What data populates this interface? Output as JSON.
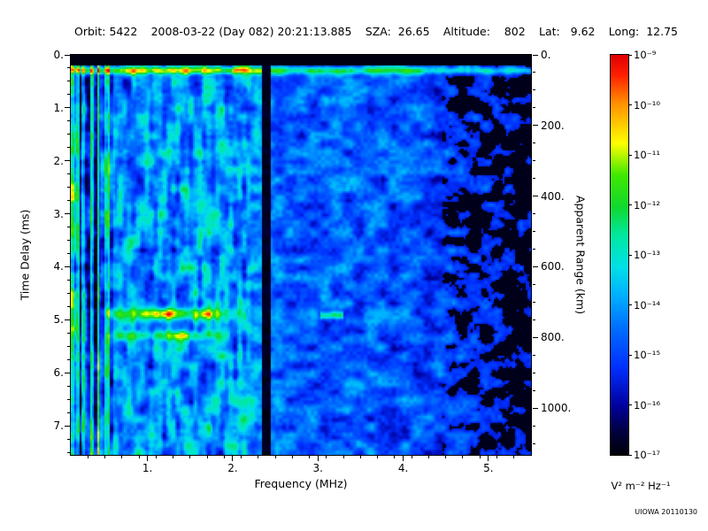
{
  "header": {
    "orbit": "Orbit: 5422",
    "datetime": "2008-03-22 (Day 082) 20:21:13.885",
    "sza": "SZA:  26.65",
    "altitude": "Altitude:    802",
    "lat": "Lat:   9.62",
    "long": "Long:  12.75"
  },
  "credit": "UIOWA 20110130",
  "chart_data": {
    "type": "heatmap",
    "description": "Radar sounder spectrogram (ionogram): echo intensity vs frequency and time delay",
    "xlabel": "Frequency (MHz)",
    "ylabel": "Time Delay (ms)",
    "y2label": "Apparent Range (km)",
    "x_range": [
      0.1,
      5.5
    ],
    "y_range": [
      0,
      7.55
    ],
    "x_ticks": {
      "values": [
        1,
        2,
        3,
        4,
        5
      ],
      "labels": [
        "1.",
        "2.",
        "3.",
        "4.",
        "5."
      ],
      "minor_step": 0.2
    },
    "y_ticks": {
      "values": [
        0,
        1,
        2,
        3,
        4,
        5,
        6,
        7
      ],
      "labels": [
        "0.",
        "1.",
        "2.",
        "3.",
        "4.",
        "5.",
        "6.",
        "7."
      ],
      "minor_step": 0.25
    },
    "y2_ticks": {
      "km_values": [
        0,
        200,
        400,
        600,
        800,
        1000
      ],
      "labels": [
        "0.",
        "200.",
        "400.",
        "600.",
        "800.",
        "1000."
      ],
      "km_per_ms": 150,
      "minor_step_km": 50
    },
    "colorbar": {
      "unit": "V² m⁻² Hz⁻¹",
      "max": "1e-9",
      "min": "1e-17",
      "tick_labels": [
        "10⁻⁹",
        "10⁻¹⁰",
        "10⁻¹¹",
        "10⁻¹²",
        "10⁻¹³",
        "10⁻¹⁴",
        "10⁻¹⁵",
        "10⁻¹⁶",
        "10⁻¹⁷"
      ],
      "colormap_stops": [
        [
          0.0,
          "#000008"
        ],
        [
          0.06,
          "#000040"
        ],
        [
          0.125,
          "#0000a0"
        ],
        [
          0.22,
          "#0030ff"
        ],
        [
          0.32,
          "#0070ff"
        ],
        [
          0.4,
          "#00b0ff"
        ],
        [
          0.47,
          "#00e0e8"
        ],
        [
          0.55,
          "#00e8a0"
        ],
        [
          0.62,
          "#10d830"
        ],
        [
          0.7,
          "#40e800"
        ],
        [
          0.78,
          "#ffff00"
        ],
        [
          0.88,
          "#ff9000"
        ],
        [
          0.95,
          "#ff2000"
        ],
        [
          1.0,
          "#e00000"
        ]
      ]
    },
    "features": {
      "background": {
        "base_profile": [
          [
            0.1,
            0.35
          ],
          [
            0.55,
            0.35
          ],
          [
            2.33,
            0.34
          ],
          [
            2.6,
            0.29
          ],
          [
            4.2,
            0.27
          ],
          [
            4.6,
            0.23
          ],
          [
            5.5,
            0.2
          ]
        ],
        "noise_amp": 0.24,
        "fine_noise_amp": 0.1,
        "streak_amp": 0.3,
        "streak_max_freq": 2.33,
        "stripe_max_freq": 0.58,
        "stripe_amp": 0.55
      },
      "top_black_band_ms": 0.17,
      "surface_echo": {
        "time_delay_ms": 0.28,
        "width_ms": 0.07,
        "amp_low_freq": 0.45,
        "amp_high_freq": 0.3
      },
      "interference_gap_mhz": [
        2.33,
        2.43
      ],
      "ionosphere_echo_1": {
        "freq_range": [
          0.5,
          2.15
        ],
        "time_delay_ms": 4.87,
        "width_ms": 0.11,
        "amp": 0.5,
        "peak_freq": 1.3
      },
      "ionosphere_echo_2": {
        "freq_range": [
          0.5,
          1.95
        ],
        "time_delay_ms": 5.28,
        "width_ms": 0.09,
        "amp": 0.38,
        "peak_freq": 1.15
      },
      "isolated_echo": {
        "freq_range": [
          3.02,
          3.28
        ],
        "time_delay_ms": 4.9,
        "width_ms": 0.07,
        "amp": 0.34
      },
      "dark_right_region": {
        "start_freq": 4.3,
        "fade": 0.06,
        "black_threshold": 0.18
      }
    }
  }
}
